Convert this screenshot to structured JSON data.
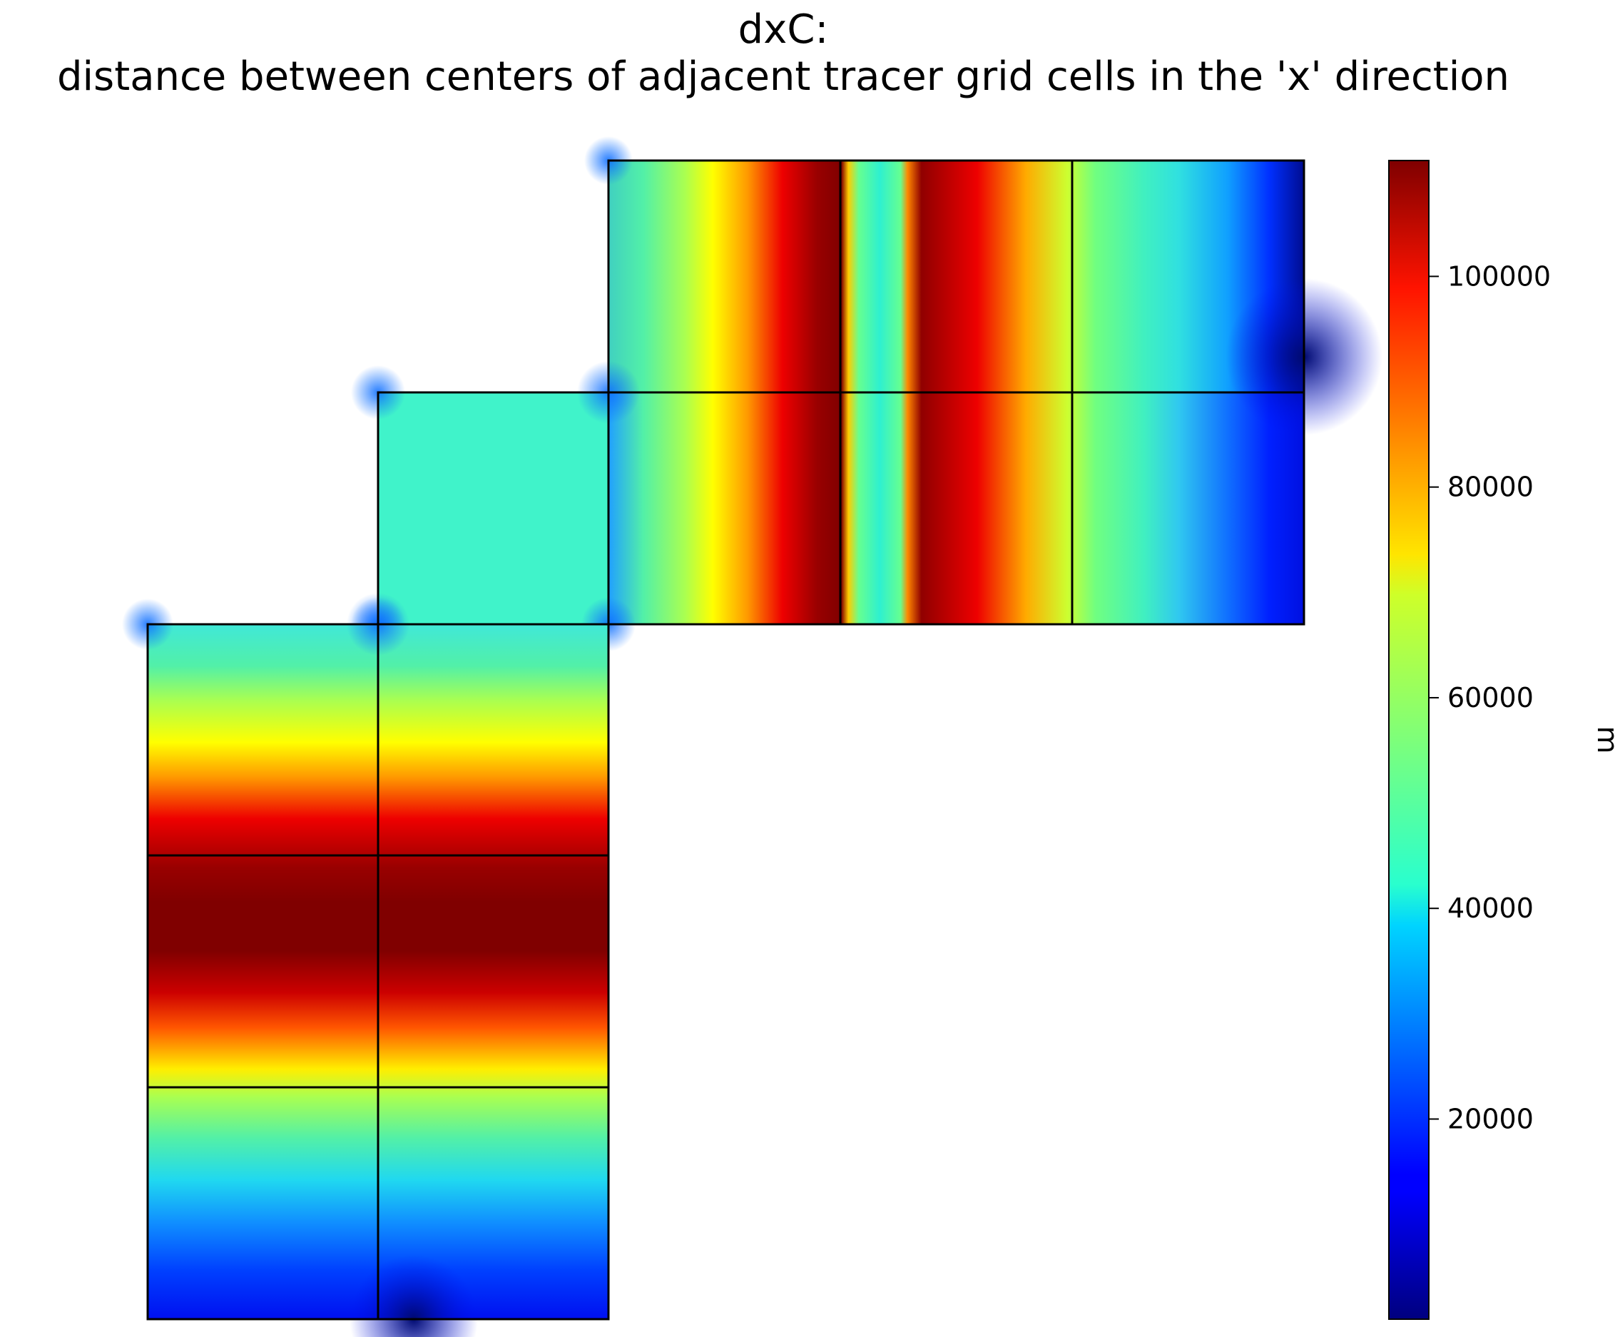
{
  "chart_data": {
    "type": "heatmap",
    "title": "dxC:",
    "subtitle": "distance between centers of adjacent tracer grid cells in the 'x' direction",
    "colorbar": {
      "label": "m",
      "colormap": "jet",
      "range": [
        1000,
        111000
      ],
      "ticks": [
        {
          "value": 20000,
          "label": "20000"
        },
        {
          "value": 40000,
          "label": "40000"
        },
        {
          "value": 60000,
          "label": "60000"
        },
        {
          "value": 80000,
          "label": "80000"
        },
        {
          "value": 100000,
          "label": "100000"
        }
      ]
    },
    "grid": "none",
    "layout": "lat-lon-cap facets, 13 tiles in 4x5 tile grid",
    "tiles": [
      {
        "row": 0,
        "col": 2,
        "profile": "along-x",
        "values": [
          40000,
          55000,
          70000,
          90000,
          108000,
          111000,
          60000,
          40000,
          60000,
          108000,
          111000,
          95000,
          80000,
          68000,
          55000,
          45000,
          40000,
          30000,
          15000,
          8000
        ]
      },
      {
        "row": 0,
        "col": 3,
        "profile": "along-x",
        "values": [
          80000,
          68000,
          55000,
          45000,
          40000,
          30000,
          15000,
          5000
        ]
      },
      {
        "row": 0,
        "col": 4,
        "profile": "along-x",
        "values": [
          40000,
          30000,
          15000,
          5000
        ]
      },
      {
        "row": 1,
        "col": 1,
        "profile": "flat",
        "values": [
          42000,
          45000,
          42000
        ]
      },
      {
        "row": 1,
        "col": 2,
        "profile": "along-x",
        "values": [
          40000,
          55000,
          70000,
          90000,
          108000,
          111000,
          60000,
          40000,
          60000,
          108000,
          111000,
          95000,
          80000,
          68000,
          55000,
          45000,
          40000,
          30000,
          15000,
          8000
        ]
      },
      {
        "row": 2,
        "col": 0,
        "profile": "along-y",
        "values": [
          40000,
          55000,
          70000,
          90000,
          108000
        ]
      },
      {
        "row": 3,
        "col": 0,
        "profile": "along-y",
        "values": [
          111000,
          108000,
          95000,
          80000,
          65000
        ]
      },
      {
        "row": 4,
        "col": 0,
        "profile": "along-y",
        "values": [
          55000,
          45000,
          35000,
          20000,
          10000
        ]
      }
    ]
  }
}
